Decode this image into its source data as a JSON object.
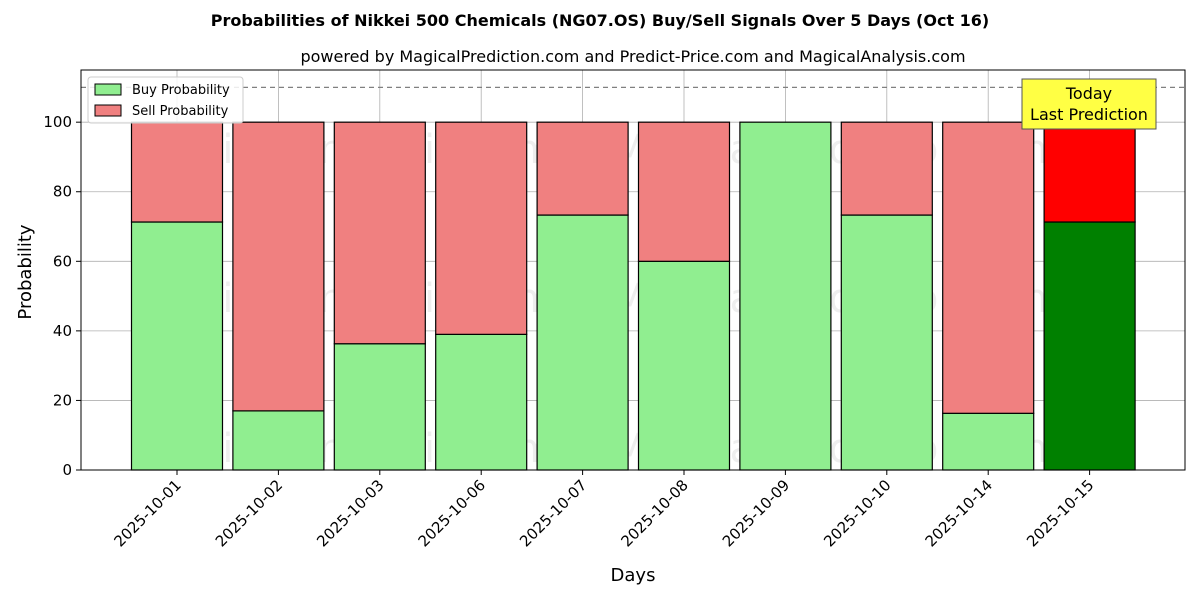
{
  "chart_data": {
    "type": "bar",
    "stacked": true,
    "title": "Probabilities of Nikkei 500 Chemicals (NG07.OS) Buy/Sell Signals Over 5 Days (Oct 16)",
    "subtitle": "powered by MagicalPrediction.com and Predict-Price.com and MagicalAnalysis.com",
    "xlabel": "Days",
    "ylabel": "Probability",
    "ylim": [
      0,
      115
    ],
    "yticks": [
      0,
      20,
      40,
      60,
      80,
      100
    ],
    "grid": true,
    "legend_position": "top-left",
    "reference_line": 110,
    "categories": [
      "2025-10-01",
      "2025-10-02",
      "2025-10-03",
      "2025-10-06",
      "2025-10-07",
      "2025-10-08",
      "2025-10-09",
      "2025-10-10",
      "2025-10-14",
      "2025-10-15"
    ],
    "series": [
      {
        "name": "Buy Probability",
        "color": "#90ee90",
        "highlight_color": "#008000",
        "values": [
          71.3,
          17.0,
          36.3,
          39.0,
          73.3,
          60.0,
          100.0,
          73.3,
          16.3,
          71.3
        ]
      },
      {
        "name": "Sell Probability",
        "color": "#f08080",
        "highlight_color": "#ff0000",
        "values": [
          28.7,
          83.0,
          63.7,
          61.0,
          26.7,
          40.0,
          0.0,
          26.7,
          83.7,
          28.7
        ]
      }
    ],
    "highlight_index": 9,
    "annotation": {
      "line1": "Today",
      "line2": "Last Prediction",
      "color": "#ffff44"
    },
    "watermarks": [
      "MagicalAnalysis.com",
      "MagicalPrediction.com",
      "MagicalAnalysis.com",
      "MagicalPrediction.com",
      "MagicalAnalysis.com",
      "MagicalPrediction.com"
    ]
  }
}
